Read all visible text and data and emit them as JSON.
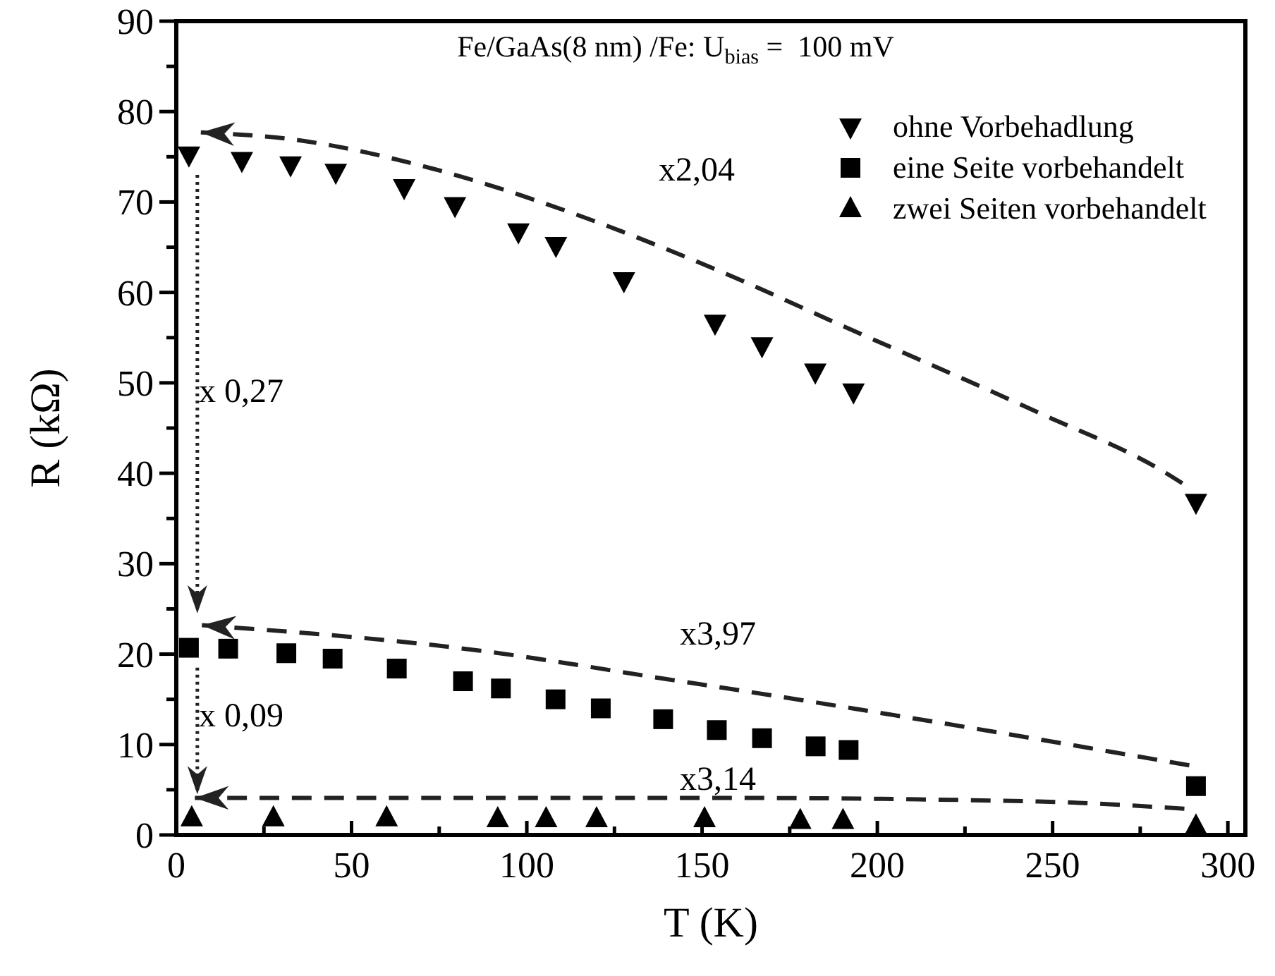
{
  "chart_data": {
    "type": "scatter",
    "title": "Fe/GaAs(8 nm) /Fe: U$_{bias}$ =  100 mV",
    "xlabel": "T (K)",
    "ylabel": "R (kΩ)",
    "xlim": [
      0,
      305
    ],
    "ylim": [
      0,
      90
    ],
    "xticks": [
      0,
      {
        "value": 25,
        "label": null
      },
      50,
      {
        "value": 75,
        "label": null
      },
      100,
      {
        "value": 125,
        "label": null
      },
      150,
      {
        "value": 175,
        "label": null
      },
      200,
      {
        "value": 225,
        "label": null
      },
      250,
      {
        "value": 275,
        "label": null
      },
      300
    ],
    "yticks": [
      0,
      {
        "value": 5,
        "label": null
      },
      10,
      {
        "value": 15,
        "label": null
      },
      20,
      {
        "value": 25,
        "label": null
      },
      30,
      {
        "value": 35,
        "label": null
      },
      40,
      {
        "value": 45,
        "label": null
      },
      50,
      {
        "value": 55,
        "label": null
      },
      60,
      {
        "value": 65,
        "label": null
      },
      70,
      {
        "value": 75,
        "label": null
      },
      80,
      {
        "value": 85,
        "label": null
      },
      90
    ],
    "legend": "top right",
    "grid": false,
    "series": [
      {
        "name": "ohne Vorbehadlung",
        "color": "#000000",
        "marker": "triangle-down",
        "x": [
          3.6,
          18.7,
          32.6,
          45.5,
          65,
          79.5,
          97.6,
          108.3,
          127.7,
          153.7,
          167.1,
          182.3,
          193.2,
          290.9
        ],
        "values": [
          75.2,
          74.6,
          74.1,
          73.3,
          71.6,
          69.6,
          66.7,
          65.2,
          61.3,
          56.6,
          54.1,
          51.2,
          49.0,
          36.8
        ]
      },
      {
        "name": "eine Seite vorbehandelt",
        "color": "#000000",
        "marker": "square",
        "x": [
          3.6,
          14.8,
          31.4,
          44.6,
          62.9,
          81.8,
          92.6,
          108.2,
          121.1,
          138.9,
          154.2,
          167.1,
          182.4,
          191.8,
          290.9
        ],
        "values": [
          20.7,
          20.6,
          20.1,
          19.5,
          18.4,
          17.0,
          16.2,
          15.0,
          14.0,
          12.8,
          11.6,
          10.7,
          9.8,
          9.4,
          5.4
        ]
      },
      {
        "name": "zwei Seiten vorbehandelt",
        "color": "#000000",
        "marker": "triangle",
        "x": [
          4.4,
          27.7,
          60,
          91.7,
          105.5,
          119.9,
          150.7,
          178,
          190.2,
          290.9
        ],
        "values": [
          1.9,
          1.9,
          1.9,
          1.8,
          1.8,
          1.8,
          1.8,
          1.6,
          1.6,
          1.0
        ]
      },
      {
        "type": "line",
        "color": "#222222",
        "marker": "none",
        "line_style": "dashed",
        "x": [
          7,
          33.6,
          73,
          112.8,
          152.3,
          193,
          246,
          281.6,
          287
        ],
        "values": [
          77.7,
          76.9,
          73.7,
          68.8,
          62.8,
          55.8,
          46.7,
          40.2,
          38.9
        ]
      },
      {
        "type": "line",
        "color": "#222222",
        "marker": "none",
        "line_style": "dashed",
        "x": [
          7.3,
          86.3,
          140.5,
          152.3,
          219.6,
          289
        ],
        "values": [
          23.2,
          20.4,
          17.2,
          16.5,
          12.3,
          7.7
        ]
      },
      {
        "type": "line",
        "color": "#222222",
        "marker": "none",
        "line_style": "dashed",
        "x": [
          5.3,
          152.3,
          246,
          287.6
        ],
        "values": [
          4.1,
          4.1,
          3.7,
          2.9
        ]
      }
    ],
    "annotations": [
      "x2,04",
      "x 0,27",
      "x3,97",
      "x 0,09",
      "x3,14"
    ]
  }
}
